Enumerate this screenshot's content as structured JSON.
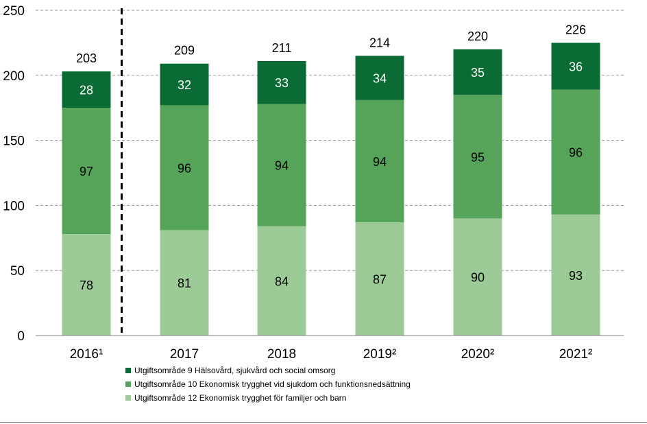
{
  "chart_data": {
    "type": "bar",
    "stacked": true,
    "categories": [
      "2016¹",
      "2017",
      "2018",
      "2019²",
      "2020²",
      "2021²"
    ],
    "series": [
      {
        "name": "Utgiftsområde 12 Ekonomisk trygghet för familjer och barn",
        "color": "#9dcb98",
        "label_color": "#000000",
        "values": [
          78,
          81,
          84,
          87,
          90,
          93
        ]
      },
      {
        "name": "Utgiftsområde 10 Ekonomisk trygghet vid sjukdom och funktionsnedsättning",
        "color": "#55a45a",
        "label_color": "#000000",
        "values": [
          97,
          96,
          94,
          94,
          95,
          96
        ]
      },
      {
        "name": "Utgiftsområde 9 Hälsovård, sjukvård och social omsorg",
        "color": "#0a6b34",
        "label_color": "#ffffff",
        "values": [
          28,
          32,
          33,
          34,
          35,
          36
        ]
      }
    ],
    "totals": [
      203,
      209,
      211,
      214,
      220,
      226
    ],
    "ylim": [
      0,
      250
    ],
    "yticks": [
      0,
      50,
      100,
      150,
      200,
      250
    ],
    "grid": true,
    "divider_after_category": "2016¹",
    "legend_position": "bottom",
    "legend_order": [
      2,
      1,
      0
    ]
  }
}
